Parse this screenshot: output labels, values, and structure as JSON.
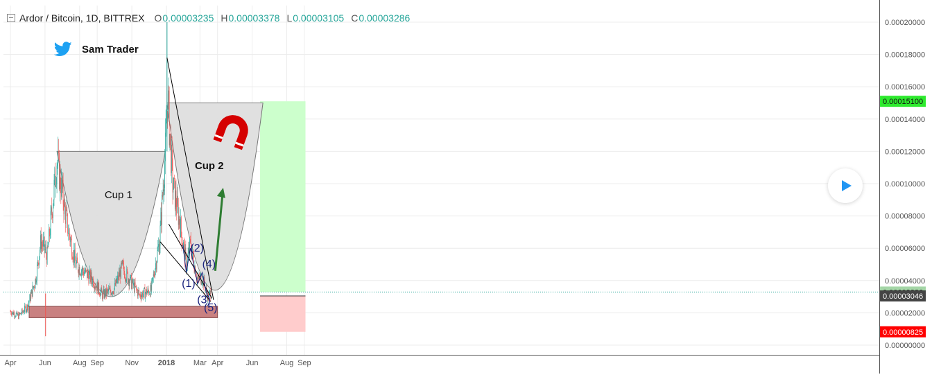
{
  "header": {
    "symbol": "Ardor / Bitcoin, 1D, BITTREX",
    "open_label": "O",
    "open_value": "0.00003235",
    "high_label": "H",
    "high_value": "0.00003378",
    "low_label": "L",
    "low_value": "0.00003105",
    "close_label": "C",
    "close_value": "0.00003286"
  },
  "author": {
    "name": "Sam Trader",
    "icon": "twitter-bird-icon"
  },
  "annotations": {
    "cup1": "Cup 1",
    "cup2": "Cup 2",
    "wave_labels": [
      "(1)",
      "(2)",
      "(3)",
      "(4)",
      "(5)"
    ],
    "magnet_icon": "magnet-icon",
    "arrow": "up-arrow"
  },
  "price_axis": {
    "ticks": [
      "0.00020000",
      "0.00018000",
      "0.00016000",
      "0.00014000",
      "0.00012000",
      "0.00010000",
      "0.00008000",
      "0.00006000",
      "0.00004000",
      "0.00002000",
      "0.00000000"
    ],
    "badges": [
      {
        "label": "0.00015100",
        "color": "#2eea2e",
        "text_color": "#111111"
      },
      {
        "label": "0.00003286",
        "color": "#a5d6a7",
        "text_color": "#111111"
      },
      {
        "label": "0.00003046",
        "color": "#444444",
        "text_color": "#ffffff"
      },
      {
        "label": "0.00000825",
        "color": "#ff0000",
        "text_color": "#ffffff"
      }
    ]
  },
  "time_axis": {
    "ticks": [
      "Apr",
      "Jun",
      "Aug",
      "Sep",
      "Nov",
      "2018",
      "Mar",
      "Apr",
      "Jun",
      "Aug",
      "Sep"
    ]
  },
  "colors": {
    "up": "#26a69a",
    "down": "#ef5350",
    "profit_zone": "#ccffcc",
    "loss_zone": "#ffcccc",
    "support_zone": "#c98181",
    "cup_fill": "#dedede"
  },
  "chart_data": {
    "type": "candlestick",
    "title": "Ardor / Bitcoin, 1D, BITTREX",
    "x_range": [
      "2017-04",
      "2018-09"
    ],
    "ylim": [
      0,
      0.0002
    ],
    "price_path": [
      [
        "2017-04-01",
        2.1e-05
      ],
      [
        "2017-04-15",
        1.8e-05
      ],
      [
        "2017-05-01",
        2.4e-05
      ],
      [
        "2017-05-15",
        4e-05
      ],
      [
        "2017-05-25",
        6.5e-05
      ],
      [
        "2017-06-05",
        5.5e-05
      ],
      [
        "2017-06-15",
        9e-05
      ],
      [
        "2017-06-22",
        0.000115
      ],
      [
        "2017-07-10",
        7.5e-05
      ],
      [
        "2017-07-25",
        5e-05
      ],
      [
        "2017-08-10",
        4.5e-05
      ],
      [
        "2017-08-25",
        4e-05
      ],
      [
        "2017-09-10",
        3.1e-05
      ],
      [
        "2017-10-01",
        3.5e-05
      ],
      [
        "2017-10-15",
        4.8e-05
      ],
      [
        "2017-11-01",
        3.8e-05
      ],
      [
        "2017-11-15",
        3.1e-05
      ],
      [
        "2017-12-05",
        3.4e-05
      ],
      [
        "2017-12-20",
        6.5e-05
      ],
      [
        "2017-12-30",
        0.00012
      ],
      [
        "2018-01-03",
        0.000155
      ],
      [
        "2018-01-12",
        0.0001
      ],
      [
        "2018-01-25",
        7.5e-05
      ],
      [
        "2018-02-05",
        5e-05
      ],
      [
        "2018-02-12",
        6.2e-05
      ],
      [
        "2018-02-25",
        4e-05
      ],
      [
        "2018-03-05",
        4.2e-05
      ],
      [
        "2018-03-15",
        3e-05
      ],
      [
        "2018-03-22",
        3.3e-05
      ]
    ],
    "levels": {
      "target": 0.000151,
      "current": 3.286e-05,
      "entry": 3.046e-05,
      "stop": 8.25e-06,
      "support_zone": [
        1.7e-05,
        2.4e-05
      ]
    },
    "legend_position": "top-left",
    "grid": true
  }
}
